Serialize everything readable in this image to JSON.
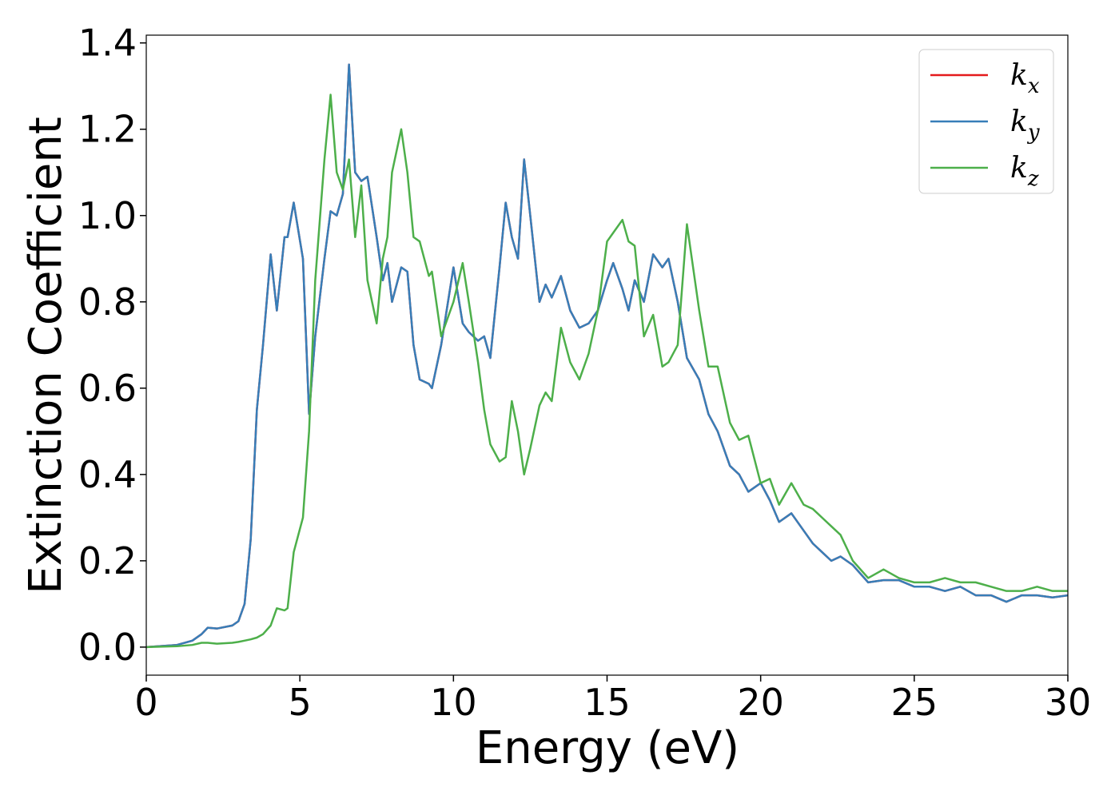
{
  "chart_data": {
    "type": "line",
    "x_label": "Energy (eV)",
    "y_label": "Extinction Coefficient",
    "xlim": [
      0,
      30
    ],
    "ylim": [
      -0.065,
      1.418
    ],
    "xticks": [
      0,
      5,
      10,
      15,
      20,
      25,
      30
    ],
    "yticks": [
      {
        "value": 0,
        "label": "0.0"
      },
      {
        "value": 0.2,
        "label": "0.2"
      },
      {
        "value": 0.4,
        "label": "0.4"
      },
      {
        "value": 0.6,
        "label": "0.6"
      },
      {
        "value": 0.8,
        "label": "0.8"
      },
      {
        "value": 1,
        "label": "1.0"
      },
      {
        "value": 1.2,
        "label": "1.2"
      },
      {
        "value": 1.4,
        "label": "1.4"
      }
    ],
    "grid": false,
    "legend": "upper right",
    "x": [
      0,
      1,
      1.5,
      1.8,
      2,
      2.3,
      2.8,
      3,
      3.2,
      3.4,
      3.6,
      3.8,
      4.05,
      4.25,
      4.5,
      4.6,
      4.8,
      5.1,
      5.3,
      5.5,
      5.8,
      6,
      6.2,
      6.4,
      6.6,
      6.8,
      7,
      7.2,
      7.5,
      7.7,
      7.85,
      8,
      8.3,
      8.5,
      8.7,
      8.9,
      9.2,
      9.3,
      9.6,
      10,
      10.3,
      10.5,
      10.8,
      11,
      11.2,
      11.5,
      11.7,
      11.9,
      12.1,
      12.3,
      12.5,
      12.8,
      13,
      13.2,
      13.5,
      13.8,
      14.1,
      14.4,
      14.7,
      15,
      15.2,
      15.5,
      15.7,
      15.9,
      16.2,
      16.5,
      16.8,
      17,
      17.3,
      17.6,
      18,
      18.3,
      18.6,
      19,
      19.3,
      19.6,
      20,
      20.3,
      20.6,
      21,
      21.4,
      21.7,
      22,
      22.3,
      22.6,
      23,
      23.5,
      24,
      24.5,
      25,
      25.5,
      26,
      26.5,
      27,
      27.5,
      28,
      28.5,
      29,
      29.5,
      30
    ],
    "series": [
      {
        "name": "kx",
        "color": "#e41a1c",
        "values": [
          0,
          0.005,
          0.015,
          0.03,
          0.045,
          0.043,
          0.05,
          0.06,
          0.1,
          0.25,
          0.55,
          0.7,
          0.91,
          0.78,
          0.95,
          0.95,
          1.03,
          0.9,
          0.54,
          0.72,
          0.9,
          1.01,
          1.0,
          1.05,
          1.35,
          1.1,
          1.08,
          1.09,
          0.95,
          0.85,
          0.89,
          0.8,
          0.88,
          0.87,
          0.7,
          0.62,
          0.61,
          0.6,
          0.7,
          0.88,
          0.75,
          0.73,
          0.71,
          0.72,
          0.67,
          0.88,
          1.03,
          0.95,
          0.9,
          1.13,
          1.0,
          0.8,
          0.84,
          0.81,
          0.86,
          0.78,
          0.74,
          0.75,
          0.78,
          0.85,
          0.89,
          0.83,
          0.78,
          0.85,
          0.8,
          0.91,
          0.88,
          0.9,
          0.8,
          0.67,
          0.62,
          0.54,
          0.5,
          0.42,
          0.4,
          0.36,
          0.38,
          0.34,
          0.29,
          0.31,
          0.27,
          0.24,
          0.22,
          0.2,
          0.21,
          0.19,
          0.15,
          0.155,
          0.155,
          0.14,
          0.14,
          0.13,
          0.14,
          0.12,
          0.12,
          0.105,
          0.12,
          0.12,
          0.115,
          0.12
        ]
      },
      {
        "name": "ky",
        "color": "#377eb8",
        "values": [
          0,
          0.005,
          0.015,
          0.03,
          0.045,
          0.043,
          0.05,
          0.06,
          0.1,
          0.25,
          0.55,
          0.7,
          0.91,
          0.78,
          0.95,
          0.95,
          1.03,
          0.9,
          0.54,
          0.72,
          0.9,
          1.01,
          1.0,
          1.05,
          1.35,
          1.1,
          1.08,
          1.09,
          0.95,
          0.85,
          0.89,
          0.8,
          0.88,
          0.87,
          0.7,
          0.62,
          0.61,
          0.6,
          0.7,
          0.88,
          0.75,
          0.73,
          0.71,
          0.72,
          0.67,
          0.88,
          1.03,
          0.95,
          0.9,
          1.13,
          1.0,
          0.8,
          0.84,
          0.81,
          0.86,
          0.78,
          0.74,
          0.75,
          0.78,
          0.85,
          0.89,
          0.83,
          0.78,
          0.85,
          0.8,
          0.91,
          0.88,
          0.9,
          0.8,
          0.67,
          0.62,
          0.54,
          0.5,
          0.42,
          0.4,
          0.36,
          0.38,
          0.34,
          0.29,
          0.31,
          0.27,
          0.24,
          0.22,
          0.2,
          0.21,
          0.19,
          0.15,
          0.155,
          0.155,
          0.14,
          0.14,
          0.13,
          0.14,
          0.12,
          0.12,
          0.105,
          0.12,
          0.12,
          0.115,
          0.12
        ]
      },
      {
        "name": "kz",
        "color": "#4daf4a",
        "values": [
          0,
          0.002,
          0.005,
          0.01,
          0.01,
          0.008,
          0.01,
          0.012,
          0.015,
          0.018,
          0.022,
          0.03,
          0.05,
          0.09,
          0.085,
          0.09,
          0.22,
          0.3,
          0.5,
          0.85,
          1.13,
          1.28,
          1.1,
          1.06,
          1.13,
          0.95,
          1.07,
          0.85,
          0.75,
          0.9,
          0.95,
          1.1,
          1.2,
          1.1,
          0.95,
          0.94,
          0.86,
          0.87,
          0.72,
          0.8,
          0.89,
          0.8,
          0.66,
          0.55,
          0.47,
          0.43,
          0.44,
          0.57,
          0.5,
          0.4,
          0.46,
          0.56,
          0.59,
          0.57,
          0.74,
          0.66,
          0.62,
          0.68,
          0.78,
          0.94,
          0.96,
          0.99,
          0.94,
          0.93,
          0.72,
          0.77,
          0.65,
          0.66,
          0.7,
          0.98,
          0.78,
          0.65,
          0.65,
          0.52,
          0.48,
          0.49,
          0.38,
          0.39,
          0.33,
          0.38,
          0.33,
          0.32,
          0.3,
          0.28,
          0.26,
          0.2,
          0.16,
          0.18,
          0.16,
          0.15,
          0.15,
          0.16,
          0.15,
          0.15,
          0.14,
          0.13,
          0.13,
          0.14,
          0.13,
          0.13
        ]
      }
    ]
  }
}
